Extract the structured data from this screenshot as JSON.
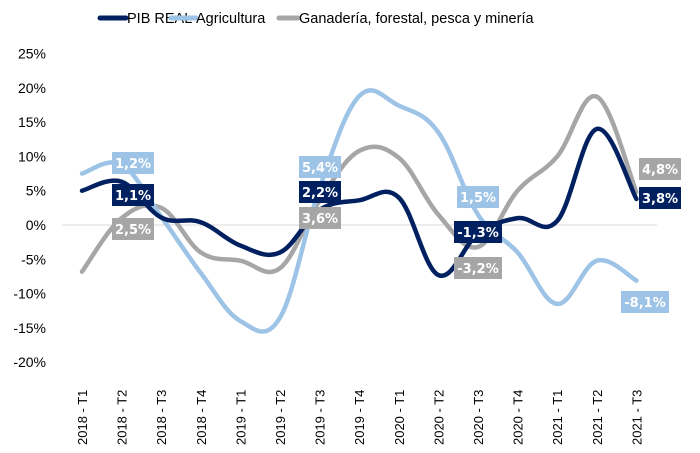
{
  "chart_data": {
    "type": "line",
    "title": "",
    "xlabel": "",
    "ylabel": "",
    "ylim": [
      -20,
      25
    ],
    "yticks": [
      25,
      20,
      15,
      10,
      5,
      0,
      -5,
      -10,
      -15,
      -20
    ],
    "ytick_labels": [
      "25%",
      "20%",
      "15%",
      "10%",
      "5%",
      "0%",
      "-5%",
      "-10%",
      "-15%",
      "-20%"
    ],
    "grid": "zero-line only",
    "smooth": true,
    "legend_position": "top",
    "categories": [
      "2018 - T1",
      "2018 - T2",
      "2018 - T3",
      "2018 - T4",
      "2019 - T1",
      "2019 - T2",
      "2019 - T3",
      "2019 - T4",
      "2020 - T1",
      "2020 - T2",
      "2020 - T3",
      "2020 - T4",
      "2021 - T1",
      "2021 - T2",
      "2021 - T3"
    ],
    "series": [
      {
        "name": "PIB REAL",
        "color": "#002060",
        "values": [
          5.0,
          6.3,
          1.1,
          0.4,
          -3.0,
          -4.0,
          2.2,
          3.6,
          4.0,
          -7.3,
          -1.3,
          1.0,
          0.6,
          14.0,
          3.8
        ],
        "data_labels": [
          {
            "index": 2,
            "text": "1,1%"
          },
          {
            "index": 6,
            "text": "2,2%"
          },
          {
            "index": 10,
            "text": "-1,3%"
          },
          {
            "index": 14,
            "text": "3,8%"
          }
        ]
      },
      {
        "name": "Agricultura",
        "color": "#9DC3E6",
        "values": [
          7.5,
          8.8,
          1.2,
          -7.0,
          -14.0,
          -13.5,
          5.4,
          18.8,
          17.4,
          13.5,
          1.5,
          -4.0,
          -11.5,
          -5.2,
          -8.1
        ],
        "data_labels": [
          {
            "index": 2,
            "text": "1,2%"
          },
          {
            "index": 6,
            "text": "5,4%"
          },
          {
            "index": 10,
            "text": "1,5%"
          },
          {
            "index": 14,
            "text": "-8,1%"
          }
        ]
      },
      {
        "name": "Ganadería, forestal, pesca y minería",
        "color": "#A6A6A6",
        "values": [
          -6.8,
          1.0,
          2.5,
          -4.0,
          -5.2,
          -6.3,
          3.6,
          10.8,
          9.8,
          1.5,
          -3.2,
          5.0,
          10.0,
          18.7,
          4.8
        ],
        "data_labels": [
          {
            "index": 2,
            "text": "2,5%"
          },
          {
            "index": 6,
            "text": "3,6%"
          },
          {
            "index": 10,
            "text": "-3,2%"
          },
          {
            "index": 14,
            "text": "4,8%"
          }
        ]
      }
    ]
  }
}
